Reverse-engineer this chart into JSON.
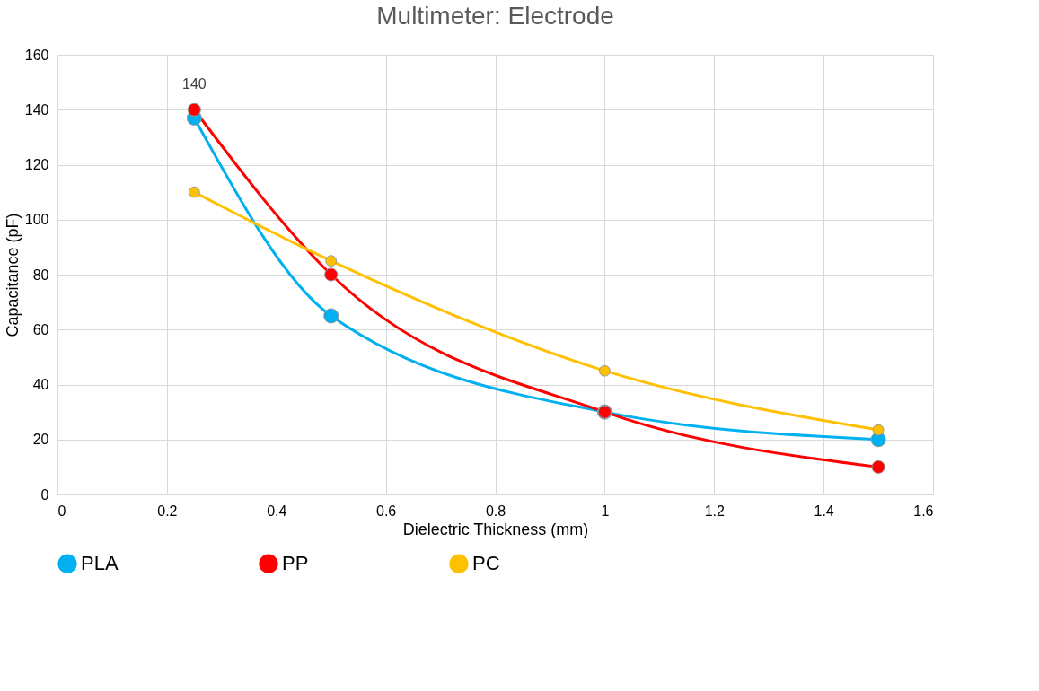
{
  "chart_data": {
    "type": "line",
    "title": "Multimeter: Electrode",
    "xlabel": "Dielectric Thickness (mm)",
    "ylabel": "Capacitance (pF)",
    "x": [
      0.25,
      0.5,
      1,
      1.5
    ],
    "series": [
      {
        "name": "PLA",
        "color": "#00b0f0",
        "values": [
          137,
          65,
          30,
          20
        ]
      },
      {
        "name": "PP",
        "color": "#ff0000",
        "values": [
          140,
          80,
          30,
          10
        ]
      },
      {
        "name": "PC",
        "color": "#ffc000",
        "values": [
          110,
          85,
          45,
          23.5
        ]
      }
    ],
    "xlim": [
      0,
      1.6
    ],
    "xticks": [
      0,
      0.2,
      0.4,
      0.6,
      0.8,
      1,
      1.2,
      1.4,
      1.6
    ],
    "ylim": [
      0,
      160
    ],
    "yticks": [
      0,
      20,
      40,
      60,
      80,
      100,
      120,
      140,
      160
    ],
    "annotations": [
      {
        "text": "140",
        "x": 0.25,
        "y": 140
      }
    ],
    "grid": true,
    "legend": "bottom",
    "marker": "circle",
    "line_style": "solid"
  }
}
